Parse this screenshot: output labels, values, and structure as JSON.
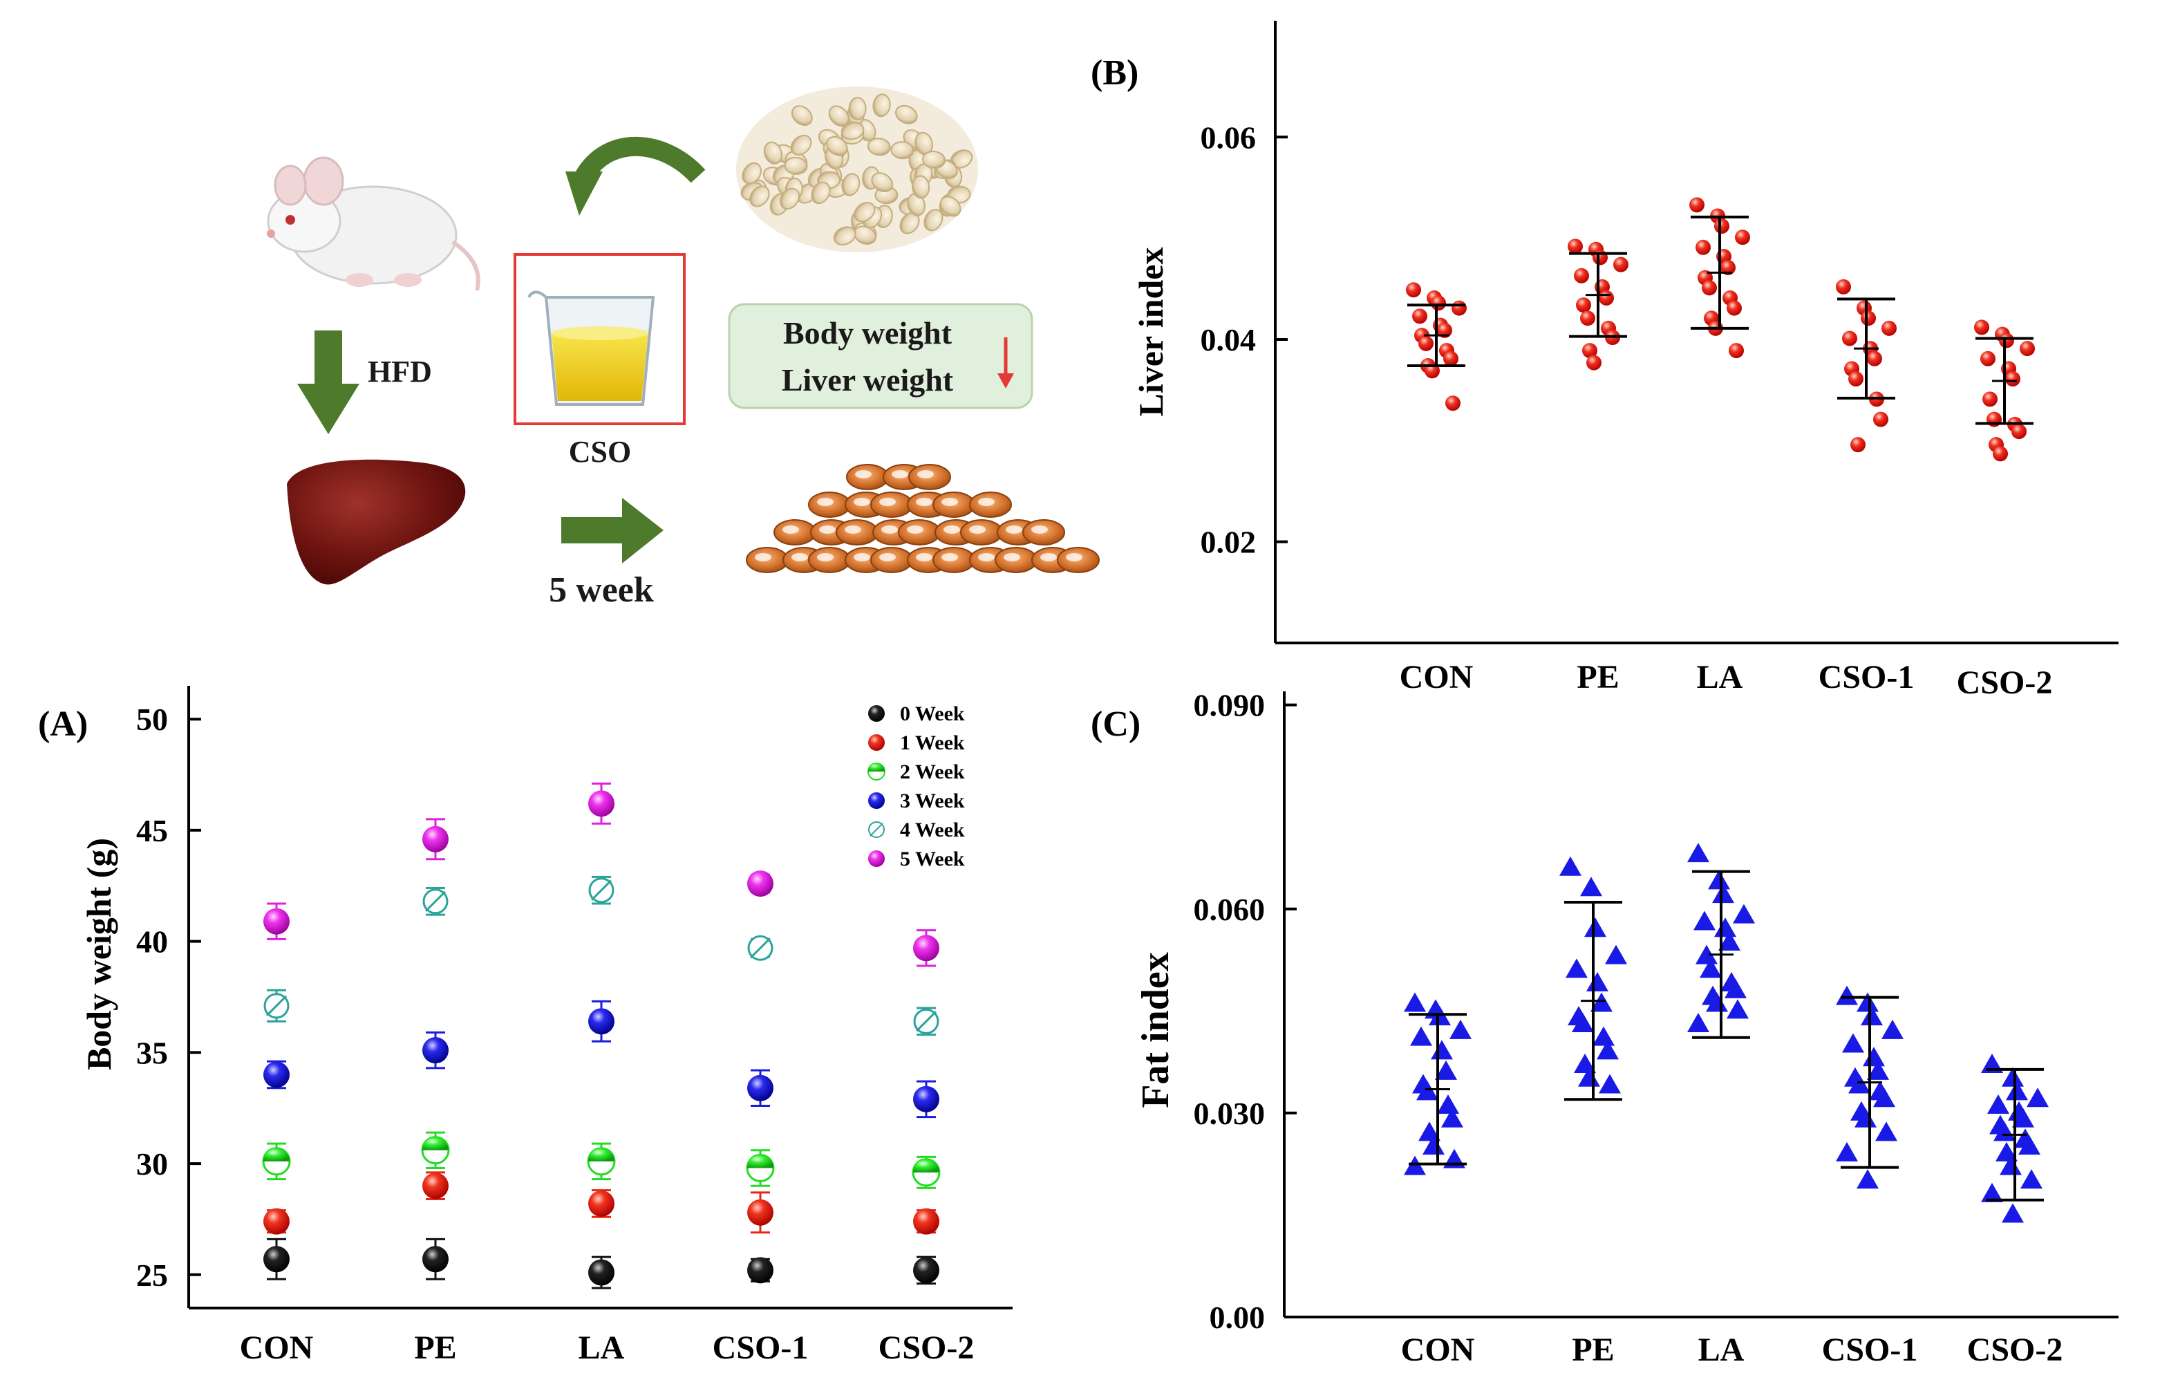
{
  "colors": {
    "arrow_green": "#4e7a2c",
    "highlight_box_border": "#e53935",
    "callout_bg": "#e1f0dc",
    "callout_border": "#b9d3ad",
    "down_arrow": "#e53935",
    "liver_red": "#e53935",
    "fat_blue": "#1a1ae6",
    "wk0": "#111111",
    "wk1": "#e82515",
    "wk2": "#22dd22",
    "wk3": "#1c1ce0",
    "wk4": "#2aa39a",
    "wk5": "#e020e0"
  },
  "illustration": {
    "hfd_label": "HFD",
    "cso_label": "CSO",
    "duration_label": "5 week",
    "callout_line1": "Body weight",
    "callout_line2": "Liver weight",
    "mouse_icon": "mouse-icon",
    "liver_icon": "liver-icon",
    "oil_icon": "oil-cup-icon",
    "seeds_icon": "coix-seeds-icon",
    "fat_icon": "fat-tissue-icon"
  },
  "chart_data": [
    {
      "panel": "(A)",
      "type": "scatter",
      "xlabel": "",
      "ylabel": "Body weight (g)",
      "ylim": [
        23.5,
        51.5
      ],
      "yticks": [
        25,
        30,
        35,
        40,
        45,
        50
      ],
      "categories": [
        "CON",
        "PE",
        "LA",
        "CSO-1",
        "CSO-2"
      ],
      "legend_position": "top-right",
      "series": [
        {
          "name": "0 Week",
          "color_key": "wk0",
          "marker": "sphere",
          "values": [
            25.7,
            25.7,
            25.1,
            25.2,
            25.2
          ],
          "errors": [
            0.9,
            0.9,
            0.7,
            0.5,
            0.6
          ]
        },
        {
          "name": "1 Week",
          "color_key": "wk1",
          "marker": "sphere",
          "values": [
            27.4,
            29.0,
            28.2,
            27.8,
            27.4
          ],
          "errors": [
            0.5,
            0.6,
            0.6,
            0.9,
            0.5
          ]
        },
        {
          "name": "2 Week",
          "color_key": "wk2",
          "marker": "half",
          "values": [
            30.1,
            30.6,
            30.1,
            29.8,
            29.6
          ],
          "errors": [
            0.8,
            0.8,
            0.8,
            0.8,
            0.7
          ]
        },
        {
          "name": "3 Week",
          "color_key": "wk3",
          "marker": "sphere",
          "values": [
            34.0,
            35.1,
            36.4,
            33.4,
            32.9
          ],
          "errors": [
            0.6,
            0.8,
            0.9,
            0.8,
            0.8
          ]
        },
        {
          "name": "4 Week",
          "color_key": "wk4",
          "marker": "slashed",
          "values": [
            37.1,
            41.8,
            42.3,
            39.7,
            36.4
          ],
          "errors": [
            0.7,
            0.6,
            0.6,
            0.4,
            0.6
          ]
        },
        {
          "name": "5 Week",
          "color_key": "wk5",
          "marker": "sphere",
          "values": [
            40.9,
            44.6,
            46.2,
            42.6,
            39.7
          ],
          "errors": [
            0.8,
            0.9,
            0.9,
            0.4,
            0.8
          ]
        }
      ]
    },
    {
      "panel": "(B)",
      "type": "scatter",
      "xlabel": "",
      "ylabel": "Liver index",
      "ylim": [
        0.01,
        0.0715
      ],
      "yticks": [
        0.02,
        0.04,
        0.06
      ],
      "ytick_labels": [
        "0.02",
        "0.04",
        "0.06"
      ],
      "categories": [
        "CON",
        "PE",
        "LA",
        "CSO-1",
        "CSO-2"
      ],
      "color_key": "liver_red",
      "marker": "sphere",
      "groups": [
        {
          "mean": 0.0404,
          "error": 0.003,
          "points": [
            0.0449,
            0.0441,
            0.0436,
            0.0431,
            0.0423,
            0.0414,
            0.0409,
            0.0404,
            0.0396,
            0.0389,
            0.0381,
            0.0374,
            0.0369,
            0.0337
          ]
        },
        {
          "mean": 0.0444,
          "error": 0.0041,
          "points": [
            0.0492,
            0.0489,
            0.0481,
            0.0474,
            0.0463,
            0.0452,
            0.0441,
            0.0434,
            0.0421,
            0.0411,
            0.0402,
            0.0389,
            0.0377
          ]
        },
        {
          "mean": 0.0466,
          "error": 0.0055,
          "points": [
            0.0533,
            0.0522,
            0.0512,
            0.0501,
            0.0491,
            0.0482,
            0.0471,
            0.0461,
            0.0451,
            0.0441,
            0.0431,
            0.0421,
            0.0411,
            0.0389
          ]
        },
        {
          "mean": 0.0391,
          "error": 0.0049,
          "points": [
            0.0452,
            0.0431,
            0.0421,
            0.0411,
            0.0401,
            0.0391,
            0.0381,
            0.0371,
            0.0361,
            0.0341,
            0.0321,
            0.0296
          ]
        },
        {
          "mean": 0.0359,
          "error": 0.0042,
          "points": [
            0.0412,
            0.0405,
            0.0399,
            0.0391,
            0.0381,
            0.0371,
            0.0361,
            0.0341,
            0.0321,
            0.0316,
            0.0309,
            0.0296,
            0.0287
          ]
        }
      ]
    },
    {
      "panel": "(C)",
      "type": "scatter",
      "xlabel": "",
      "ylabel": "Fat index",
      "ylim": [
        0.0,
        0.092
      ],
      "yticks": [
        0.0,
        0.03,
        0.06,
        0.09
      ],
      "ytick_labels": [
        "0.00",
        "0.030",
        "0.060",
        "0.090"
      ],
      "categories": [
        "CON",
        "PE",
        "LA",
        "CSO-1",
        "CSO-2"
      ],
      "color_key": "fat_blue",
      "marker": "triangle",
      "groups": [
        {
          "mean": 0.0335,
          "error": 0.011,
          "points": [
            0.046,
            0.045,
            0.044,
            0.042,
            0.041,
            0.039,
            0.036,
            0.034,
            0.033,
            0.031,
            0.029,
            0.027,
            0.025,
            0.023,
            0.022
          ]
        },
        {
          "mean": 0.0465,
          "error": 0.0145,
          "points": [
            0.066,
            0.063,
            0.057,
            0.053,
            0.051,
            0.049,
            0.046,
            0.044,
            0.043,
            0.041,
            0.039,
            0.037,
            0.035,
            0.034
          ]
        },
        {
          "mean": 0.0533,
          "error": 0.0122,
          "points": [
            0.068,
            0.064,
            0.062,
            0.059,
            0.058,
            0.057,
            0.055,
            0.053,
            0.051,
            0.049,
            0.048,
            0.047,
            0.046,
            0.045,
            0.043
          ]
        },
        {
          "mean": 0.0345,
          "error": 0.0125,
          "points": [
            0.047,
            0.046,
            0.044,
            0.042,
            0.04,
            0.038,
            0.036,
            0.035,
            0.034,
            0.033,
            0.032,
            0.03,
            0.029,
            0.027,
            0.024,
            0.02
          ]
        },
        {
          "mean": 0.0268,
          "error": 0.0096,
          "points": [
            0.037,
            0.035,
            0.033,
            0.032,
            0.031,
            0.03,
            0.029,
            0.028,
            0.027,
            0.026,
            0.025,
            0.024,
            0.022,
            0.02,
            0.018,
            0.015
          ]
        }
      ]
    }
  ]
}
